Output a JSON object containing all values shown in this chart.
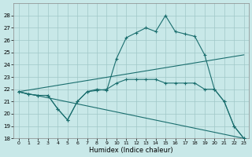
{
  "xlabel": "Humidex (Indice chaleur)",
  "bg_color": "#c8e8e8",
  "grid_color": "#a0c8c8",
  "line_color": "#1a6e6e",
  "ylim": [
    18,
    29
  ],
  "xlim": [
    -0.5,
    23.5
  ],
  "yticks": [
    18,
    19,
    20,
    21,
    22,
    23,
    24,
    25,
    26,
    27,
    28
  ],
  "xticks": [
    0,
    1,
    2,
    3,
    4,
    5,
    6,
    7,
    8,
    9,
    10,
    11,
    12,
    13,
    14,
    15,
    16,
    17,
    18,
    19,
    20,
    21,
    22,
    23
  ],
  "curve_peak": {
    "x": [
      0,
      1,
      2,
      3,
      4,
      5,
      6,
      7,
      8,
      9,
      10,
      11,
      12,
      13,
      14,
      15,
      16,
      17,
      18,
      19,
      20,
      21,
      22,
      23
    ],
    "y": [
      21.8,
      21.6,
      21.5,
      21.5,
      20.4,
      19.5,
      21.0,
      21.8,
      22.0,
      21.9,
      24.5,
      26.2,
      26.6,
      27.0,
      26.7,
      28.0,
      26.7,
      26.5,
      26.3,
      24.8,
      22.0,
      21.0,
      19.0,
      18.0
    ]
  },
  "curve_mid": {
    "x": [
      0,
      1,
      2,
      3,
      4,
      5,
      6,
      7,
      8,
      9,
      10,
      11,
      12,
      13,
      14,
      15,
      16,
      17,
      18,
      19,
      20,
      21,
      22,
      23
    ],
    "y": [
      21.8,
      21.6,
      21.5,
      21.5,
      20.4,
      19.5,
      21.0,
      21.8,
      21.9,
      22.0,
      22.5,
      22.8,
      22.8,
      22.8,
      22.8,
      22.5,
      22.5,
      22.5,
      22.5,
      22.0,
      22.0,
      21.0,
      19.0,
      18.0
    ]
  },
  "line_down": {
    "x": [
      0,
      23
    ],
    "y": [
      21.8,
      18.0
    ]
  },
  "line_up": {
    "x": [
      0,
      23
    ],
    "y": [
      21.8,
      24.8
    ]
  },
  "figsize": [
    3.2,
    2.0
  ],
  "dpi": 100
}
